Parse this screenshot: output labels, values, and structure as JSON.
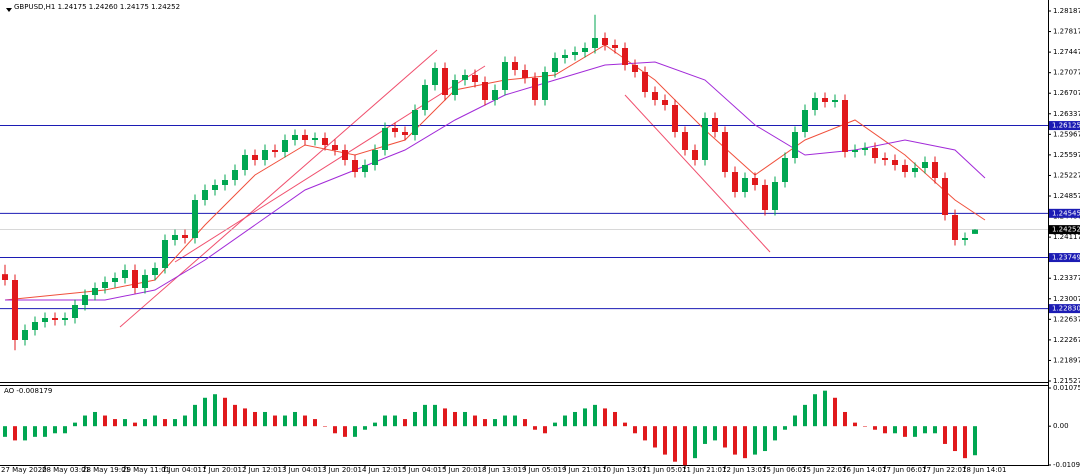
{
  "chart_data": [
    {
      "type": "candlestick",
      "title": "GBPUSD,H1  1.24175 1.24260 1.24175 1.24252",
      "categories": [
        "27 May 2020",
        null,
        null,
        null,
        "28 May 03:01",
        null,
        null,
        null,
        "28 May 19:01",
        null,
        null,
        null,
        "29 May 11:01",
        null,
        null,
        null,
        "1 Jun 04:01",
        null,
        null,
        null,
        "1 Jun 20:01",
        null,
        null,
        null,
        "2 Jun 12:01",
        null,
        null,
        null,
        "3 Jun 04:01",
        null,
        null,
        null,
        "3 Jun 20:01",
        null,
        null,
        null,
        "4 Jun 12:01",
        null,
        null,
        null,
        "5 Jun 04:01",
        null,
        null,
        null,
        "5 Jun 20:01",
        null,
        null,
        null,
        "8 Jun 13:01",
        null,
        null,
        null,
        "9 Jun 05:01",
        null,
        null,
        null,
        "9 Jun 21:01",
        null,
        null,
        null,
        "10 Jun 13:01",
        null,
        null,
        null,
        "11 Jun 05:01",
        null,
        null,
        null,
        "11 Jun 21:01",
        null,
        null,
        null,
        "12 Jun 13:01",
        null,
        null,
        null,
        "15 Jun 06:01",
        null,
        null,
        null,
        "15 Jun 22:01",
        null,
        null,
        null,
        "16 Jun 14:01",
        null,
        null,
        null,
        "17 Jun 06:01",
        null,
        null,
        null,
        "17 Jun 22:01",
        null,
        null,
        null,
        "18 Jun 14:01",
        null
      ],
      "ohlc": [
        [
          1.2345,
          1.2362,
          1.23245,
          1.23345
        ],
        [
          1.23345,
          1.23445,
          1.2208,
          1.22265
        ],
        [
          1.22265,
          1.22545,
          1.22165,
          1.22445
        ],
        [
          1.22445,
          1.22689,
          1.22345,
          1.22589
        ],
        [
          1.22589,
          1.22761,
          1.22489,
          1.22661
        ],
        [
          1.22661,
          1.22761,
          1.22525,
          1.22625
        ],
        [
          1.22625,
          1.22761,
          1.22525,
          1.22661
        ],
        [
          1.22661,
          1.22995,
          1.22561,
          1.22895
        ],
        [
          1.22895,
          1.23175,
          1.22795,
          1.23075
        ],
        [
          1.23075,
          1.23301,
          1.22975,
          1.23201
        ],
        [
          1.23201,
          1.23409,
          1.23101,
          1.23309
        ],
        [
          1.23309,
          1.23481,
          1.23209,
          1.23381
        ],
        [
          1.23381,
          1.23625,
          1.23281,
          1.23525
        ],
        [
          1.23525,
          1.23625,
          1.23101,
          1.23201
        ],
        [
          1.23201,
          1.23535,
          1.23101,
          1.23435
        ],
        [
          1.23435,
          1.23661,
          1.23335,
          1.23561
        ],
        [
          1.23561,
          1.24165,
          1.23461,
          1.24065
        ],
        [
          1.24065,
          1.24255,
          1.23965,
          1.24155
        ],
        [
          1.24155,
          1.24255,
          1.24001,
          1.24101
        ],
        [
          1.24101,
          1.24885,
          1.24001,
          1.24785
        ],
        [
          1.24785,
          1.25065,
          1.24685,
          1.24965
        ],
        [
          1.24965,
          1.25155,
          1.24865,
          1.25055
        ],
        [
          1.25055,
          1.25245,
          1.24955,
          1.25145
        ],
        [
          1.25145,
          1.25425,
          1.25045,
          1.25325
        ],
        [
          1.25325,
          1.25695,
          1.25225,
          1.25595
        ],
        [
          1.25595,
          1.25695,
          1.25405,
          1.25505
        ],
        [
          1.25505,
          1.25785,
          1.25405,
          1.25685
        ],
        [
          1.25685,
          1.25785,
          1.25549,
          1.25649
        ],
        [
          1.25649,
          1.25965,
          1.25549,
          1.25865
        ],
        [
          1.25865,
          1.26055,
          1.25765,
          1.25955
        ],
        [
          1.25955,
          1.26055,
          1.25765,
          1.25865
        ],
        [
          1.25865,
          1.26001,
          1.25765,
          1.25901
        ],
        [
          1.25901,
          1.26001,
          1.25675,
          1.25775
        ],
        [
          1.25775,
          1.25875,
          1.25585,
          1.25685
        ],
        [
          1.25685,
          1.25785,
          1.25405,
          1.25505
        ],
        [
          1.25505,
          1.25605,
          1.25189,
          1.25289
        ],
        [
          1.25289,
          1.25515,
          1.25189,
          1.25415
        ],
        [
          1.25415,
          1.25785,
          1.25315,
          1.25685
        ],
        [
          1.25685,
          1.26181,
          1.25585,
          1.26081
        ],
        [
          1.26081,
          1.26181,
          1.25909,
          1.26009
        ],
        [
          1.26009,
          1.26109,
          1.25855,
          1.25955
        ],
        [
          1.25955,
          1.26505,
          1.25855,
          1.26405
        ],
        [
          1.26405,
          1.26955,
          1.26305,
          1.26855
        ],
        [
          1.26855,
          1.27261,
          1.26755,
          1.27161
        ],
        [
          1.27161,
          1.27261,
          1.26575,
          1.26675
        ],
        [
          1.26675,
          1.27045,
          1.26575,
          1.26945
        ],
        [
          1.26945,
          1.27135,
          1.26845,
          1.27035
        ],
        [
          1.27035,
          1.27135,
          1.26809,
          1.26909
        ],
        [
          1.26909,
          1.27009,
          1.26485,
          1.26585
        ],
        [
          1.26585,
          1.26865,
          1.26485,
          1.26765
        ],
        [
          1.26765,
          1.27369,
          1.26665,
          1.27269
        ],
        [
          1.27269,
          1.27369,
          1.27025,
          1.27125
        ],
        [
          1.27125,
          1.27225,
          1.26881,
          1.26981
        ],
        [
          1.26981,
          1.27081,
          1.26485,
          1.26585
        ],
        [
          1.26585,
          1.27189,
          1.26485,
          1.27089
        ],
        [
          1.27089,
          1.27441,
          1.26989,
          1.27341
        ],
        [
          1.27341,
          1.27495,
          1.27241,
          1.27395
        ],
        [
          1.27395,
          1.27549,
          1.27295,
          1.27449
        ],
        [
          1.27449,
          1.27621,
          1.27349,
          1.27521
        ],
        [
          1.27521,
          1.2812,
          1.27421,
          1.27701
        ],
        [
          1.27701,
          1.27801,
          1.27475,
          1.27575
        ],
        [
          1.27575,
          1.27675,
          1.27421,
          1.27521
        ],
        [
          1.27521,
          1.27621,
          1.27115,
          1.27215
        ],
        [
          1.27215,
          1.27315,
          1.26989,
          1.27089
        ],
        [
          1.27089,
          1.27189,
          1.26629,
          1.26729
        ],
        [
          1.26729,
          1.26829,
          1.26485,
          1.26585
        ],
        [
          1.26585,
          1.26685,
          1.26395,
          1.26495
        ],
        [
          1.26495,
          1.26595,
          1.25909,
          1.26009
        ],
        [
          1.26009,
          1.26109,
          1.25585,
          1.25685
        ],
        [
          1.25685,
          1.25785,
          1.25405,
          1.25505
        ],
        [
          1.25505,
          1.26361,
          1.25405,
          1.26261
        ],
        [
          1.26261,
          1.26361,
          1.25909,
          1.26009
        ],
        [
          1.26009,
          1.26109,
          1.25189,
          1.25289
        ],
        [
          1.25289,
          1.25389,
          1.24829,
          1.24929
        ],
        [
          1.24929,
          1.25281,
          1.24829,
          1.25181
        ],
        [
          1.25181,
          1.25281,
          1.24955,
          1.25055
        ],
        [
          1.25055,
          1.25155,
          1.24505,
          1.24605
        ],
        [
          1.24605,
          1.25209,
          1.24505,
          1.25109
        ],
        [
          1.25109,
          1.25641,
          1.25009,
          1.25541
        ],
        [
          1.25541,
          1.26109,
          1.25441,
          1.26009
        ],
        [
          1.26009,
          1.26505,
          1.25909,
          1.26405
        ],
        [
          1.26405,
          1.26721,
          1.26305,
          1.26621
        ],
        [
          1.26621,
          1.26721,
          1.26449,
          1.26549
        ],
        [
          1.26549,
          1.26685,
          1.26449,
          1.26585
        ],
        [
          1.26585,
          1.26685,
          1.25549,
          1.25649
        ],
        [
          1.25649,
          1.25785,
          1.25549,
          1.25685
        ],
        [
          1.25685,
          1.25821,
          1.25585,
          1.25721
        ],
        [
          1.25721,
          1.25821,
          1.25441,
          1.25541
        ],
        [
          1.25541,
          1.25641,
          1.25405,
          1.25505
        ],
        [
          1.25505,
          1.25605,
          1.25315,
          1.25415
        ],
        [
          1.25415,
          1.25515,
          1.25189,
          1.25289
        ],
        [
          1.25289,
          1.25461,
          1.25189,
          1.25361
        ],
        [
          1.25361,
          1.25569,
          1.25261,
          1.25469
        ],
        [
          1.25469,
          1.25569,
          1.25081,
          1.25181
        ],
        [
          1.25181,
          1.25281,
          1.24415,
          1.24515
        ],
        [
          1.24515,
          1.24615,
          1.23965,
          1.24065
        ],
        [
          1.24065,
          1.24201,
          1.23965,
          1.24101
        ],
        [
          1.24175,
          1.2426,
          1.24175,
          1.24252
        ]
      ],
      "up_color": "#00a651",
      "down_color": "#e0191c",
      "ylim": [
        1.21527,
        1.28187
      ],
      "yticks": [
        1.28187,
        1.27817,
        1.27447,
        1.27077,
        1.26707,
        1.26337,
        1.25967,
        1.25597,
        1.25227,
        1.24857,
        1.24487,
        1.24117,
        1.23747,
        1.23377,
        1.23007,
        1.22637,
        1.22267,
        1.21897,
        1.21527
      ],
      "hlines": [
        1.26125,
        1.24545,
        1.23749,
        {
          "value": 1.2283,
          "label": "1.22830"
        }
      ],
      "hline_color": "#1c1cb4",
      "last_price": 1.24252,
      "overlays": [
        {
          "color": "#f0503c",
          "x": [
            0,
            10,
            15,
            20,
            25,
            30,
            35,
            40,
            45,
            50,
            55,
            60,
            65,
            70,
            75,
            80,
            85,
            90,
            95,
            98
          ],
          "values": [
            1.22985,
            1.23165,
            1.23345,
            1.24335,
            1.25235,
            1.25775,
            1.25595,
            1.25865,
            1.26765,
            1.26945,
            1.27035,
            1.27575,
            1.26945,
            1.26045,
            1.25235,
            1.25865,
            1.26225,
            1.25595,
            1.24785,
            1.24425
          ]
        },
        {
          "color": "#a22ad8",
          "x": [
            0,
            10,
            15,
            20,
            30,
            35,
            40,
            45,
            50,
            55,
            60,
            65,
            70,
            75,
            80,
            85,
            90,
            95,
            98
          ],
          "values": [
            1.22985,
            1.22985,
            1.23165,
            1.23705,
            1.24965,
            1.25325,
            1.25685,
            1.26225,
            1.26675,
            1.26945,
            1.27215,
            1.27269,
            1.26945,
            1.26135,
            1.25595,
            1.25685,
            1.25865,
            1.25685,
            1.25181
          ]
        }
      ]
    },
    {
      "type": "bar",
      "title": "AO -0.008179",
      "values": [
        -0.003,
        -0.004,
        -0.004,
        -0.003,
        -0.003,
        -0.002,
        -0.002,
        0.001,
        0.003,
        0.004,
        0.003,
        0.002,
        0.002,
        0.001,
        0.002,
        0.003,
        0.002,
        0.002,
        0.003,
        0.006,
        0.008,
        0.009,
        0.008,
        0.006,
        0.005,
        0.004,
        0.004,
        0.003,
        0.003,
        0.004,
        0.003,
        0.002,
        0.0,
        -0.002,
        -0.003,
        -0.003,
        -0.001,
        0.001,
        0.003,
        0.003,
        0.002,
        0.004,
        0.006,
        0.006,
        0.005,
        0.004,
        0.004,
        0.003,
        0.002,
        0.002,
        0.003,
        0.003,
        0.002,
        -0.001,
        -0.002,
        0.001,
        0.003,
        0.004,
        0.005,
        0.006,
        0.005,
        0.004,
        0.001,
        -0.002,
        -0.004,
        -0.006,
        -0.008,
        -0.01,
        -0.011,
        -0.009,
        -0.005,
        -0.004,
        -0.006,
        -0.008,
        -0.009,
        -0.008,
        -0.007,
        -0.004,
        -0.001,
        0.003,
        0.006,
        0.009,
        0.01,
        0.008,
        0.004,
        0.001,
        0.0,
        -0.001,
        -0.002,
        -0.002,
        -0.003,
        -0.003,
        -0.002,
        -0.002,
        -0.005,
        -0.007,
        -0.009,
        -0.008179
      ],
      "up_color": "#00a651",
      "down_color": "#e0191c",
      "ylim": [
        -0.010929,
        0.010751
      ],
      "yticks": [
        0.010751,
        {
          "value": 0,
          "label": "0.00"
        },
        -0.010929
      ]
    }
  ]
}
